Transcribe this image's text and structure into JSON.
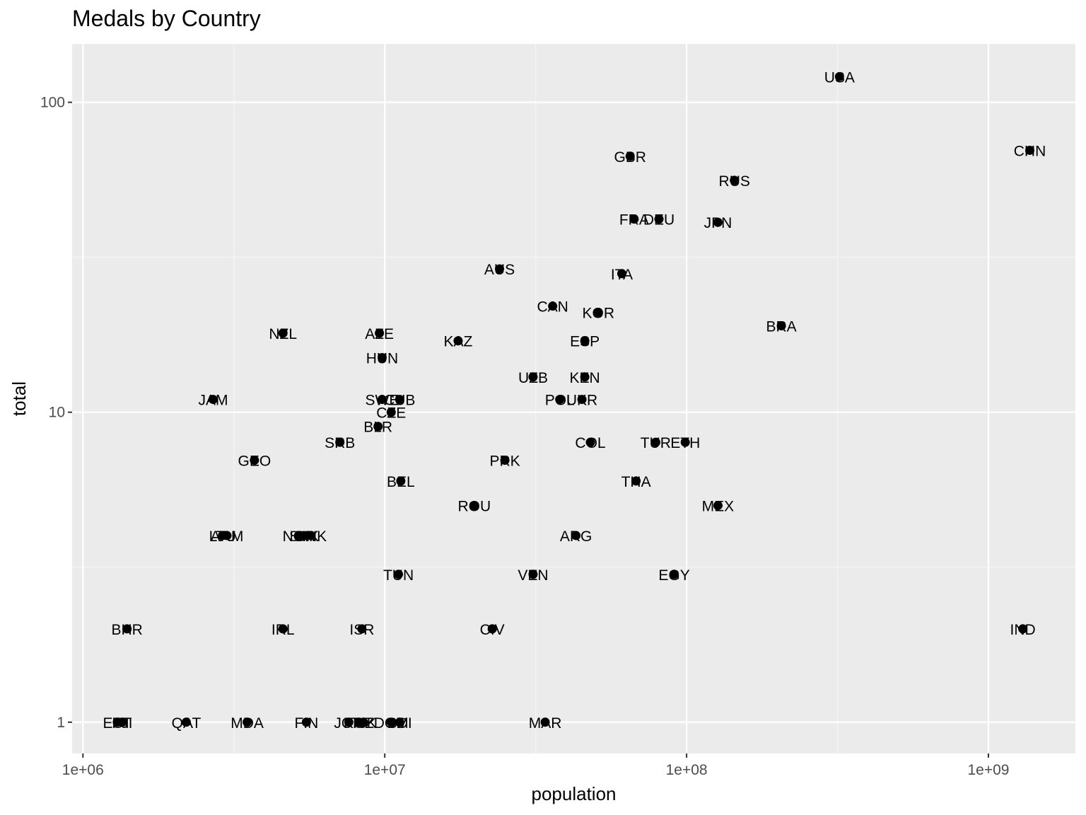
{
  "chart_data": {
    "type": "scatter",
    "title": "Medals by Country",
    "xlabel": "population",
    "ylabel": "total",
    "x_scale": "log10",
    "y_scale": "log10",
    "xlim": [
      900000,
      2000000000
    ],
    "ylim": [
      0.9,
      160
    ],
    "x_ticks": [
      {
        "value": 1000000,
        "label": "1e+06"
      },
      {
        "value": 10000000,
        "label": "1e+07"
      },
      {
        "value": 100000000,
        "label": "1e+08"
      },
      {
        "value": 1000000000,
        "label": "1e+09"
      }
    ],
    "y_ticks": [
      {
        "value": 1,
        "label": "1"
      },
      {
        "value": 10,
        "label": "10"
      },
      {
        "value": 100,
        "label": "100"
      }
    ],
    "grid": true,
    "legend": "none",
    "colors": {
      "panel_background": "#ebebeb",
      "grid_major": "#ffffff",
      "grid_minor": "#f5f5f5",
      "point": "#000000",
      "tick_text": "#4d4d4d",
      "axis_text": "#000000"
    },
    "points": [
      {
        "label": "USA",
        "x": 321000000,
        "y": 121
      },
      {
        "label": "CHN",
        "x": 1371000000,
        "y": 70
      },
      {
        "label": "GBR",
        "x": 65000000,
        "y": 67
      },
      {
        "label": "RUS",
        "x": 144000000,
        "y": 56
      },
      {
        "label": "FRA",
        "x": 67000000,
        "y": 42
      },
      {
        "label": "DEU",
        "x": 81000000,
        "y": 42
      },
      {
        "label": "JPN",
        "x": 127000000,
        "y": 41
      },
      {
        "label": "AUS",
        "x": 24000000,
        "y": 29
      },
      {
        "label": "ITA",
        "x": 61000000,
        "y": 28
      },
      {
        "label": "CAN",
        "x": 36000000,
        "y": 22
      },
      {
        "label": "KOR",
        "x": 51000000,
        "y": 21
      },
      {
        "label": "BRA",
        "x": 206000000,
        "y": 19
      },
      {
        "label": "NZL",
        "x": 4600000,
        "y": 18
      },
      {
        "label": "AZE",
        "x": 9600000,
        "y": 18
      },
      {
        "label": "KAZ",
        "x": 17500000,
        "y": 17
      },
      {
        "label": "ESP",
        "x": 46000000,
        "y": 17
      },
      {
        "label": "HUN",
        "x": 9800000,
        "y": 15
      },
      {
        "label": "UZB",
        "x": 31000000,
        "y": 13
      },
      {
        "label": "KEN",
        "x": 46000000,
        "y": 13
      },
      {
        "label": "JAM",
        "x": 2700000,
        "y": 11
      },
      {
        "label": "SWE",
        "x": 9800000,
        "y": 11
      },
      {
        "label": "CUB",
        "x": 11200000,
        "y": 11
      },
      {
        "label": "POL",
        "x": 38000000,
        "y": 11
      },
      {
        "label": "UKR",
        "x": 45000000,
        "y": 11
      },
      {
        "label": "CZE",
        "x": 10500000,
        "y": 10
      },
      {
        "label": "BLR",
        "x": 9500000,
        "y": 9
      },
      {
        "label": "SRB",
        "x": 7100000,
        "y": 8
      },
      {
        "label": "COL",
        "x": 48000000,
        "y": 8
      },
      {
        "label": "TUR",
        "x": 79000000,
        "y": 8
      },
      {
        "label": "ETH",
        "x": 99000000,
        "y": 8
      },
      {
        "label": "GEO",
        "x": 3700000,
        "y": 7
      },
      {
        "label": "PRK",
        "x": 25000000,
        "y": 7
      },
      {
        "label": "BEL",
        "x": 11300000,
        "y": 6
      },
      {
        "label": "THA",
        "x": 68000000,
        "y": 6
      },
      {
        "label": "ROU",
        "x": 19800000,
        "y": 5
      },
      {
        "label": "MEX",
        "x": 127000000,
        "y": 5
      },
      {
        "label": "LTU",
        "x": 2900000,
        "y": 4
      },
      {
        "label": "ARM",
        "x": 3000000,
        "y": 4
      },
      {
        "label": "NOR",
        "x": 5200000,
        "y": 4
      },
      {
        "label": "SVK",
        "x": 5400000,
        "y": 4
      },
      {
        "label": "DNK",
        "x": 5700000,
        "y": 4
      },
      {
        "label": "ARG",
        "x": 43000000,
        "y": 4
      },
      {
        "label": "TUN",
        "x": 11100000,
        "y": 3
      },
      {
        "label": "VEN",
        "x": 31000000,
        "y": 3
      },
      {
        "label": "EGY",
        "x": 91000000,
        "y": 3
      },
      {
        "label": "BHR",
        "x": 1400000,
        "y": 2
      },
      {
        "label": "IRL",
        "x": 4600000,
        "y": 2
      },
      {
        "label": "ISR",
        "x": 8400000,
        "y": 2
      },
      {
        "label": "CIV",
        "x": 22700000,
        "y": 2
      },
      {
        "label": "IND",
        "x": 1300000000,
        "y": 2
      },
      {
        "label": "EST",
        "x": 1300000,
        "y": 1
      },
      {
        "label": "FJI",
        "x": 1350000,
        "y": 1
      },
      {
        "label": "QAT",
        "x": 2200000,
        "y": 1
      },
      {
        "label": "MDA",
        "x": 3500000,
        "y": 1
      },
      {
        "label": "FIN",
        "x": 5500000,
        "y": 1
      },
      {
        "label": "JOR",
        "x": 7600000,
        "y": 1
      },
      {
        "label": "TJK",
        "x": 8500000,
        "y": 1
      },
      {
        "label": "KGZ",
        "x": 8200000,
        "y": 1
      },
      {
        "label": "DOM",
        "x": 10500000,
        "y": 1
      },
      {
        "label": "BDI",
        "x": 11200000,
        "y": 1
      },
      {
        "label": "MAR",
        "x": 34000000,
        "y": 1
      }
    ]
  }
}
